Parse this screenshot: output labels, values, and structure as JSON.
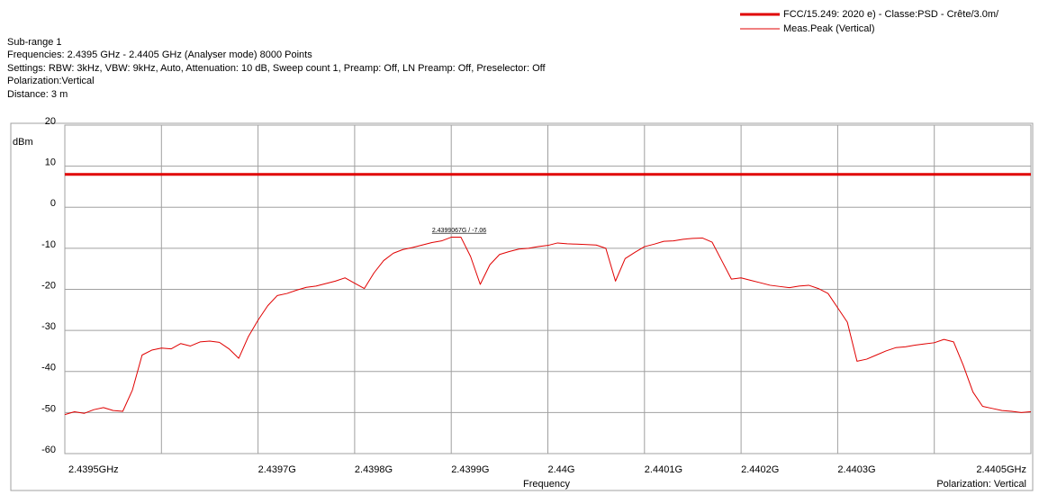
{
  "header": {
    "title": "Sub-range 1",
    "lines": [
      "Frequencies: 2.4395 GHz - 2.4405 GHz (Analyser mode) 8000 Points",
      "Settings: RBW: 3kHz, VBW: 9kHz, Auto, Attenuation: 10 dB, Sweep count 1, Preamp: Off, LN Preamp: Off, Preselector: Off",
      "Polarization:Vertical",
      "Distance: 3 m"
    ]
  },
  "chart_data": {
    "type": "line",
    "y_label": "dBm",
    "x_label": "Frequency",
    "x_note": "Polarization: Vertical",
    "annotation": "2.4399067G / -7.06",
    "xlim": [
      2.4395,
      2.4405
    ],
    "ylim": [
      -60,
      20
    ],
    "yticks": [
      -60,
      -50,
      -40,
      -30,
      -20,
      -10,
      0,
      10,
      20
    ],
    "xticks": [
      {
        "value": 2.4395,
        "label": "2.4395GHz"
      },
      {
        "value": 2.4396,
        "label": null
      },
      {
        "value": 2.4397,
        "label": "2.4397G"
      },
      {
        "value": 2.4398,
        "label": "2.4398G"
      },
      {
        "value": 2.4399,
        "label": "2.4399G"
      },
      {
        "value": 2.44,
        "label": "2.44G"
      },
      {
        "value": 2.4401,
        "label": "2.4401G"
      },
      {
        "value": 2.4402,
        "label": "2.4402G"
      },
      {
        "value": 2.4403,
        "label": "2.4403G"
      },
      {
        "value": 2.4404,
        "label": null
      },
      {
        "value": 2.4405,
        "label": "2.4405GHz"
      }
    ],
    "grid": true,
    "x": [
      2.4395,
      2.43951,
      2.43952,
      2.43953,
      2.43954,
      2.43955,
      2.43956,
      2.43957,
      2.43958,
      2.43959,
      2.4396,
      2.43961,
      2.43962,
      2.43963,
      2.43964,
      2.43965,
      2.43966,
      2.43967,
      2.43968,
      2.43969,
      2.4397,
      2.43971,
      2.43972,
      2.43973,
      2.43974,
      2.43975,
      2.43976,
      2.43977,
      2.43978,
      2.43979,
      2.4398,
      2.43981,
      2.43982,
      2.43983,
      2.43984,
      2.43985,
      2.43986,
      2.43987,
      2.43988,
      2.43989,
      2.4399,
      2.43991,
      2.43992,
      2.43993,
      2.43994,
      2.43995,
      2.43996,
      2.43997,
      2.43998,
      2.43999,
      2.44,
      2.44001,
      2.44002,
      2.44003,
      2.44004,
      2.44005,
      2.44006,
      2.44007,
      2.44008,
      2.44009,
      2.4401,
      2.44011,
      2.44012,
      2.44013,
      2.44014,
      2.44015,
      2.44016,
      2.44017,
      2.44018,
      2.44019,
      2.4402,
      2.44021,
      2.44022,
      2.44023,
      2.44024,
      2.44025,
      2.44026,
      2.44027,
      2.44028,
      2.44029,
      2.4403,
      2.44031,
      2.44032,
      2.44033,
      2.44034,
      2.44035,
      2.44036,
      2.44037,
      2.44038,
      2.44039,
      2.4404,
      2.44041,
      2.44042,
      2.44043,
      2.44044,
      2.44045,
      2.44046,
      2.44047,
      2.44048,
      2.44049,
      2.4405
    ],
    "series": [
      {
        "name": "FCC/15.249: 2020 e) - Classe:PSD - Crête/3.0m/",
        "color": "#e00000",
        "x": [
          2.4395,
          2.4405
        ],
        "values": [
          8,
          8
        ]
      },
      {
        "name": "Meas.Peak (Vertical)",
        "color": "#e00000",
        "values": [
          -50.5,
          -49.8,
          -50.2,
          -49.3,
          -48.8,
          -49.5,
          -49.7,
          -44.5,
          -36,
          -34.8,
          -34.3,
          -34.5,
          -33.2,
          -33.8,
          -32.8,
          -32.6,
          -32.9,
          -34.5,
          -36.8,
          -31.5,
          -27.5,
          -24,
          -21.5,
          -21,
          -20.2,
          -19.5,
          -19.2,
          -18.6,
          -18,
          -17.2,
          -18.5,
          -19.8,
          -16,
          -13,
          -11.2,
          -10.3,
          -9.8,
          -9.2,
          -8.6,
          -8.2,
          -7.3,
          -7.3,
          -12,
          -18.8,
          -14,
          -11.5,
          -10.8,
          -10.2,
          -10,
          -9.6,
          -9.3,
          -8.7,
          -8.9,
          -9,
          -9.1,
          -9.2,
          -10,
          -18,
          -12.5,
          -11,
          -9.6,
          -9,
          -8.3,
          -8.2,
          -7.8,
          -7.6,
          -7.5,
          -8.5,
          -13,
          -17.5,
          -17.2,
          -17.8,
          -18.4,
          -19,
          -19.3,
          -19.6,
          -19.2,
          -19,
          -19.8,
          -21,
          -24.5,
          -28,
          -37.5,
          -37,
          -36,
          -35,
          -34.2,
          -34,
          -33.6,
          -33.3,
          -33,
          -32.2,
          -32.8,
          -38.5,
          -45,
          -48.5,
          -49,
          -49.5,
          -49.7,
          -50,
          -49.8
        ]
      }
    ]
  }
}
